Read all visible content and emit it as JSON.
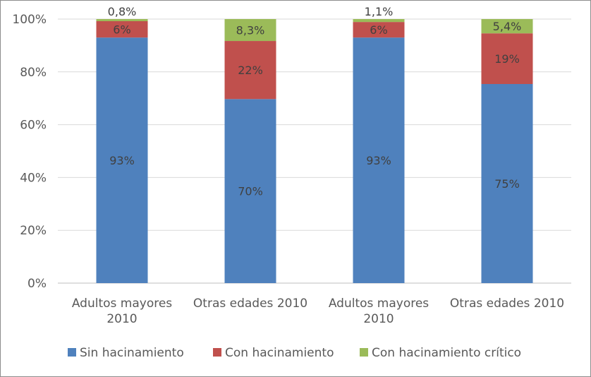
{
  "chart_data": {
    "type": "bar",
    "stacked": true,
    "percent": true,
    "categories": [
      [
        "Adultos mayores",
        "2010"
      ],
      [
        "Otras edades 2010"
      ],
      [
        "Adultos mayores",
        "2010"
      ],
      [
        "Otras edades 2010"
      ]
    ],
    "series": [
      {
        "name": "Sin hacinamiento",
        "color": "#4F81BD",
        "values": [
          93,
          69.7,
          93,
          75.4
        ],
        "labels": [
          "93%",
          "70%",
          "93%",
          "75%"
        ]
      },
      {
        "name": "Con hacinamiento",
        "color": "#C0504D",
        "values": [
          6.2,
          22,
          5.9,
          19.2
        ],
        "labels": [
          "6%",
          "22%",
          "6%",
          "19%"
        ]
      },
      {
        "name": "Con hacinamiento crítico",
        "color": "#9BBB59",
        "values": [
          0.8,
          8.3,
          1.1,
          5.4
        ],
        "labels": [
          "0,8%",
          "8,3%",
          "1,1%",
          "5,4%"
        ]
      }
    ],
    "y_ticks": [
      {
        "value": 0,
        "label": "0%"
      },
      {
        "value": 20,
        "label": "20%"
      },
      {
        "value": 40,
        "label": "40%"
      },
      {
        "value": 60,
        "label": "60%"
      },
      {
        "value": 80,
        "label": "80%"
      },
      {
        "value": 100,
        "label": "100%"
      }
    ],
    "ylim": [
      0,
      100
    ],
    "grid": true,
    "legend_position": "bottom"
  }
}
